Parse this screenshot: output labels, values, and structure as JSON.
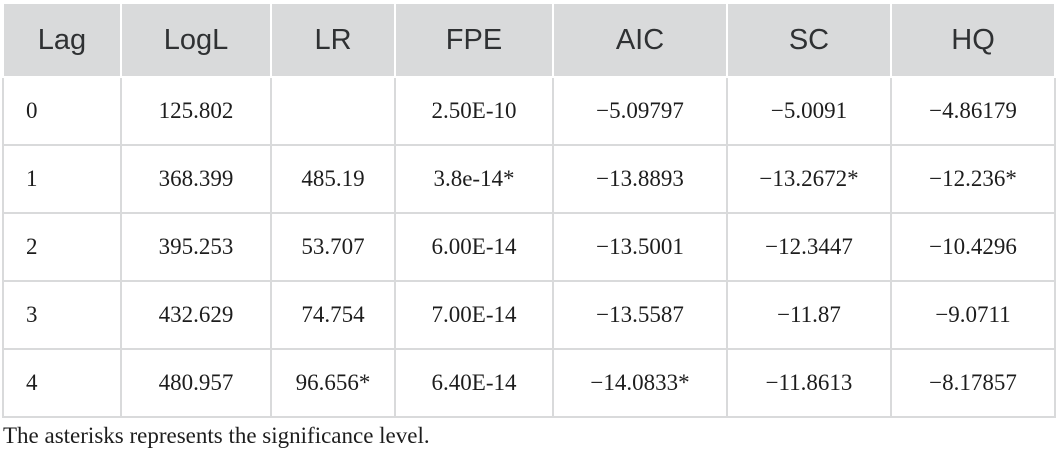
{
  "table": {
    "columns": [
      "Lag",
      "LogL",
      "LR",
      "FPE",
      "AIC",
      "SC",
      "HQ"
    ],
    "rows": [
      [
        "0",
        "125.802",
        "",
        "2.50E-10",
        "−5.09797",
        "−5.0091",
        "−4.86179"
      ],
      [
        "1",
        "368.399",
        "485.19",
        "3.8e-14*",
        "−13.8893",
        "−13.2672*",
        "−12.236*"
      ],
      [
        "2",
        "395.253",
        "53.707",
        "6.00E-14",
        "−13.5001",
        "−12.3447",
        "−10.4296"
      ],
      [
        "3",
        "432.629",
        "74.754",
        "7.00E-14",
        "−13.5587",
        "−11.87",
        "−9.0711"
      ],
      [
        "4",
        "480.957",
        "96.656*",
        "6.40E-14",
        "−14.0833*",
        "−11.8613",
        "−8.17857"
      ]
    ]
  },
  "note": "The asterisks represents the significance level.",
  "colors": {
    "header_bg": "#d9dadb",
    "border": "#d9dadb",
    "text": "#1d1d1d"
  }
}
